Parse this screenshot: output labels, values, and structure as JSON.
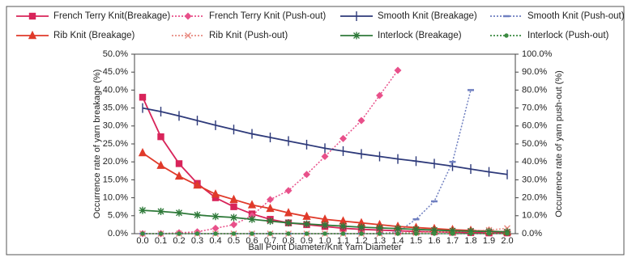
{
  "chart_data": {
    "type": "line",
    "x_label": "Ball Point Diameter/Knit Yarn Diameter",
    "y_label": "Occurrence rate of yarn breakage (%)",
    "y2_label": "Occurrence rate of yarn push-out (%)",
    "categories": [
      "0.0",
      "0.1",
      "0.2",
      "0.3",
      "0.4",
      "0.5",
      "0.6",
      "0.7",
      "0.8",
      "0.9",
      "1.0",
      "1.1",
      "1.2",
      "1.3",
      "1.4",
      "1.5",
      "1.6",
      "1.7",
      "1.8",
      "1.9",
      "2.0"
    ],
    "ylim": [
      0,
      50
    ],
    "yticks": [
      {
        "value": 0,
        "label": "0.0%"
      },
      {
        "value": 5,
        "label": "5.0%"
      },
      {
        "value": 10,
        "label": "10.0%"
      },
      {
        "value": 15,
        "label": "15.0%"
      },
      {
        "value": 20,
        "label": "20.0%"
      },
      {
        "value": 25,
        "label": "25.0%"
      },
      {
        "value": 30,
        "label": "30.0%"
      },
      {
        "value": 35,
        "label": "35.0%"
      },
      {
        "value": 40,
        "label": "40.0%"
      },
      {
        "value": 45,
        "label": "45.0%"
      },
      {
        "value": 50,
        "label": "50.0%"
      }
    ],
    "y2lim": [
      0,
      100
    ],
    "y2ticks": [
      {
        "value": 0,
        "label": "0.0%"
      },
      {
        "value": 10,
        "label": "10.0%"
      },
      {
        "value": 20,
        "label": "20.0%"
      },
      {
        "value": 30,
        "label": "30.0%"
      },
      {
        "value": 40,
        "label": "40.0%"
      },
      {
        "value": 50,
        "label": "50.0%"
      },
      {
        "value": 60,
        "label": "60.0%"
      },
      {
        "value": 70,
        "label": "70.0%"
      },
      {
        "value": 80,
        "label": "80.0%"
      },
      {
        "value": 90,
        "label": "90.0%"
      },
      {
        "value": 100,
        "label": "100.0%"
      }
    ],
    "series": [
      {
        "name": "French Terry Knit(Breakage)",
        "color": "#d8245a",
        "style": "solid",
        "marker": "square",
        "values": [
          38,
          27,
          19.5,
          14,
          10,
          7.5,
          5.5,
          4,
          3,
          2.5,
          2,
          1.5,
          1.2,
          1,
          0.8,
          0.6,
          0.5,
          0.4,
          0.3,
          0.2,
          0.2
        ]
      },
      {
        "name": "French Terry Knit (Push-out)",
        "color": "#e8508a",
        "style": "dotted",
        "marker": "diamond",
        "axis": "y2",
        "values": [
          0,
          0,
          0.5,
          1,
          3,
          5,
          10,
          19,
          24,
          33,
          43,
          53,
          63,
          77,
          91,
          null,
          null,
          null,
          null,
          null,
          null
        ]
      },
      {
        "name": "Smooth Knit (Breakage)",
        "color": "#2e3a7a",
        "style": "solid",
        "marker": "plus",
        "values": [
          35,
          34,
          32.8,
          31.5,
          30.2,
          29,
          27.8,
          26.8,
          25.8,
          24.8,
          23.8,
          23,
          22.2,
          21.5,
          20.8,
          20.2,
          19.5,
          18.8,
          18,
          17.2,
          16.5
        ]
      },
      {
        "name": "Smooth Knit (Push-out)",
        "color": "#6f7fc0",
        "style": "dotted",
        "marker": "dash",
        "axis": "y2",
        "values": [
          0,
          0,
          0,
          0,
          0,
          0,
          0,
          0,
          0,
          0,
          0,
          0,
          0,
          0,
          1,
          8,
          18,
          40,
          80,
          null,
          null
        ]
      },
      {
        "name": "Rib Knit (Breakage)",
        "color": "#e03a2a",
        "style": "solid",
        "marker": "triangle",
        "values": [
          22.5,
          19,
          16,
          13.5,
          11,
          9.5,
          8,
          7,
          5.8,
          4.8,
          4,
          3.5,
          3,
          2.5,
          2,
          1.7,
          1.4,
          1.1,
          0.9,
          0.7,
          0.5
        ]
      },
      {
        "name": "Rib Knit (Push-out)",
        "color": "#e88a80",
        "style": "dotted",
        "marker": "x",
        "axis": "y2",
        "values": [
          0,
          0,
          0,
          0,
          0,
          0,
          0,
          0,
          0,
          0,
          0,
          0,
          0,
          0,
          0.5,
          0.5,
          1,
          1,
          1.5,
          2,
          3
        ]
      },
      {
        "name": "Interlock (Breakage)",
        "color": "#2f7a3a",
        "style": "solid",
        "marker": "star",
        "values": [
          6.5,
          6.2,
          5.8,
          5.2,
          4.8,
          4.5,
          4,
          3.5,
          3,
          2.7,
          2.4,
          2.1,
          1.8,
          1.6,
          1.4,
          1.2,
          1,
          0.8,
          0.7,
          0.6,
          0.5
        ]
      },
      {
        "name": "Interlock (Push-out)",
        "color": "#3a8a40",
        "style": "dotted",
        "marker": "dot",
        "axis": "y2",
        "values": [
          0,
          0,
          0,
          0,
          0,
          0,
          0,
          0,
          0,
          0,
          0,
          0,
          0,
          0,
          0,
          0,
          0,
          0,
          0,
          0,
          0
        ]
      }
    ]
  }
}
